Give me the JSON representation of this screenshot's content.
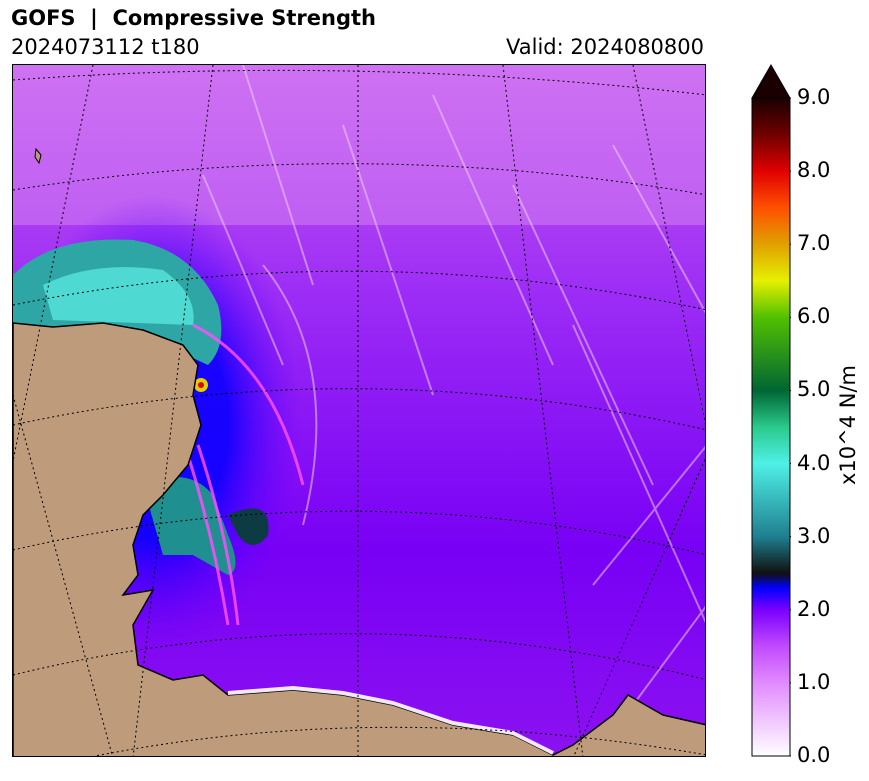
{
  "header": {
    "title": "GOFS  |  Compressive Strength",
    "run_label": "2024073112 t180",
    "valid_label": "Valid: 2024080800"
  },
  "colorbar": {
    "units": "x10^4 N/m",
    "min": 0.0,
    "max": 9.0,
    "extend": "max",
    "ticks": [
      "0.0",
      "1.0",
      "2.0",
      "3.0",
      "4.0",
      "5.0",
      "6.0",
      "7.0",
      "8.0",
      "9.0"
    ],
    "colors": {
      "0.0": "#ffffff",
      "1.0": "#e18bff",
      "1.5": "#c24aff",
      "2.0": "#7a00ff",
      "2.3": "#0000ff",
      "2.5": "#101010",
      "3.0": "#1f7f8f",
      "4.0": "#4ff0e6",
      "4.5": "#2ac98c",
      "5.0": "#006633",
      "6.0": "#52c000",
      "6.5": "#e5f000",
      "7.0": "#e0a000",
      "7.5": "#ff5000",
      "8.0": "#e00000",
      "8.5": "#700000",
      "9.0": "#1a0000"
    }
  },
  "map": {
    "land_color": "#bd9b7b",
    "coastline_color": "#000000",
    "graticule_style": "dotted"
  }
}
